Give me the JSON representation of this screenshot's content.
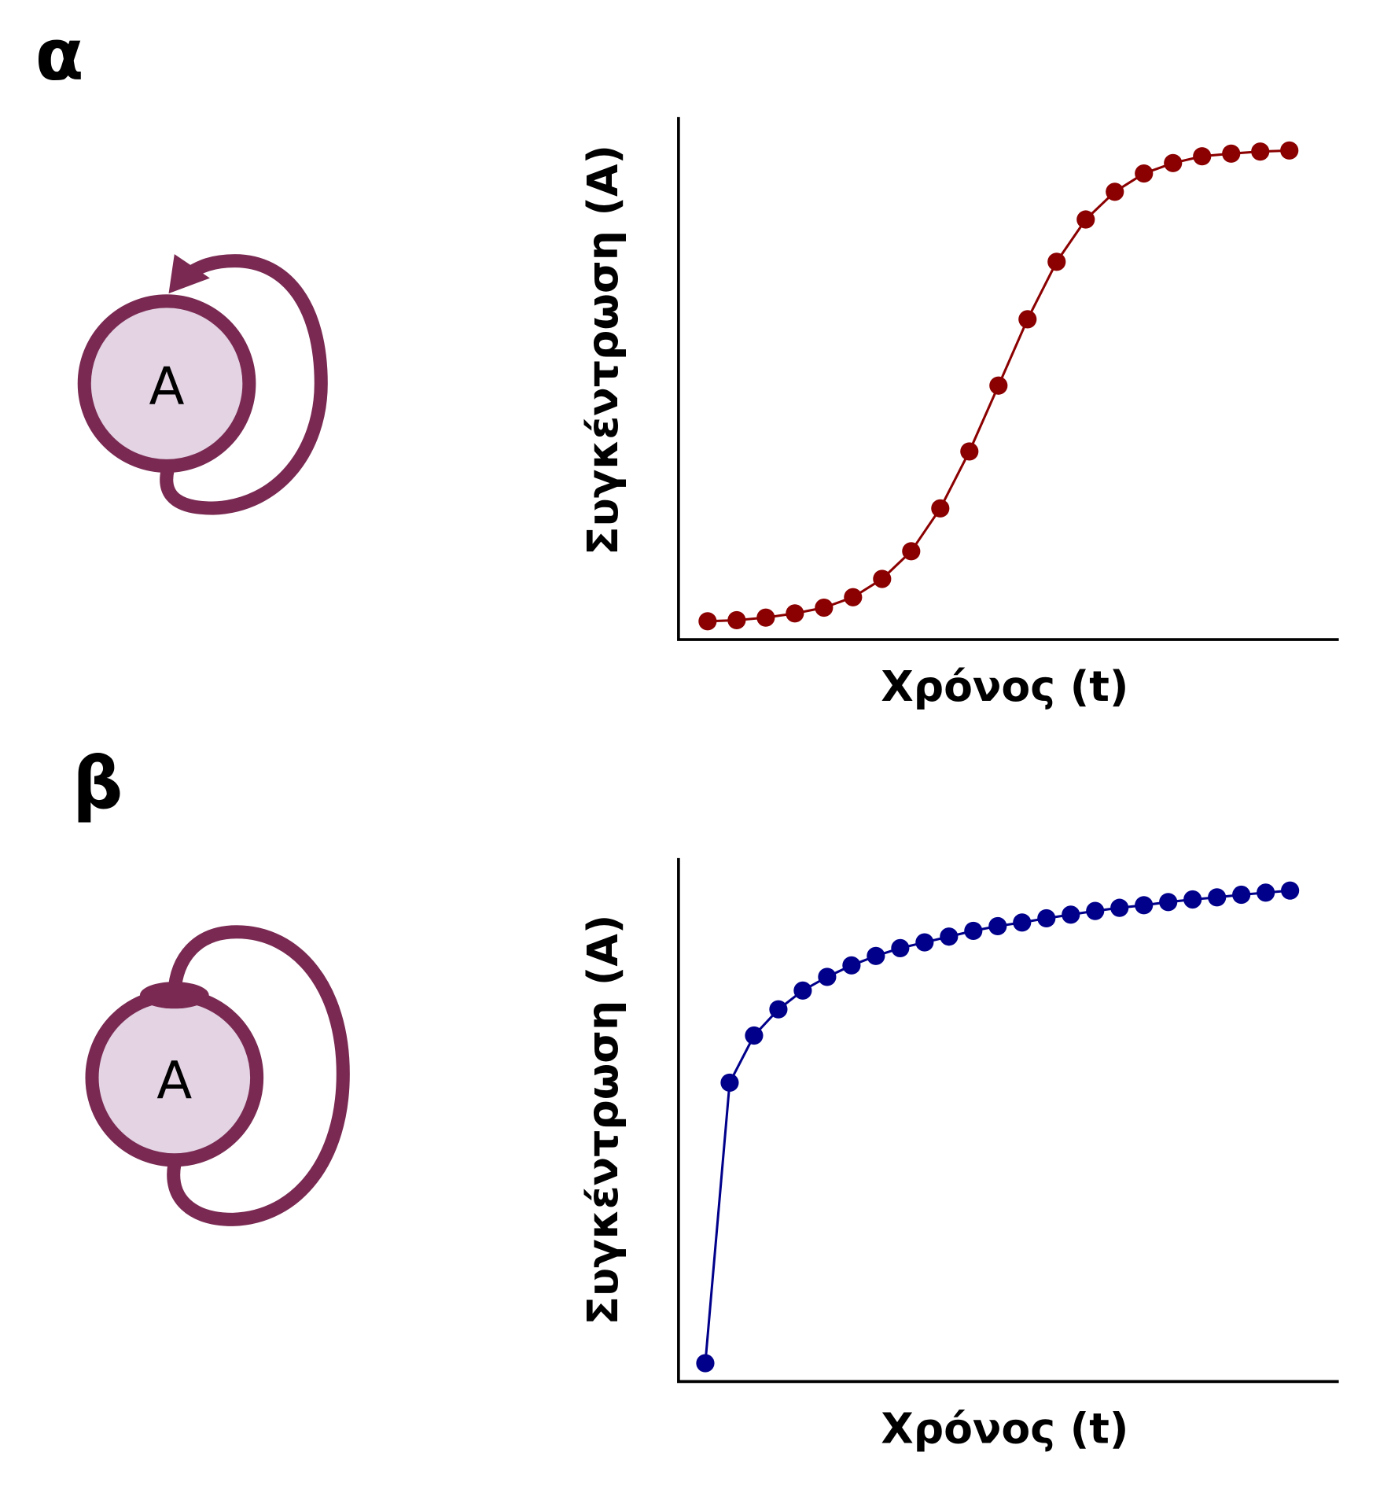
{
  "panels": [
    {
      "label": "α",
      "node": "A"
    },
    {
      "label": "β",
      "node": "A"
    }
  ],
  "chart_data": [
    {
      "type": "line",
      "xlabel": "Χρόνος (t)",
      "ylabel": "Συγκέντρωση (A)",
      "x": [
        1,
        2,
        3,
        4,
        5,
        6,
        7,
        8,
        9,
        10,
        11,
        12,
        13,
        14,
        15,
        16,
        17,
        18,
        19,
        20,
        21
      ],
      "series": [
        {
          "color": "#8b0000",
          "values": [
            3.5,
            3.7,
            4.2,
            5.0,
            6.1,
            8.1,
            11.6,
            16.9,
            25.1,
            36.0,
            48.6,
            61.3,
            72.3,
            80.4,
            85.7,
            89.2,
            91.2,
            92.5,
            93.0,
            93.4,
            93.6
          ]
        }
      ],
      "xlim": [
        0,
        22.7
      ],
      "ylim": [
        0,
        100
      ]
    },
    {
      "type": "line",
      "xlabel": "Χρόνος (t)",
      "ylabel": "Συγκέντρωση (A)",
      "x": [
        1,
        2,
        3,
        4,
        5,
        6,
        7,
        8,
        9,
        10,
        11,
        12,
        13,
        14,
        15,
        16,
        17,
        18,
        19,
        20,
        21,
        22,
        23,
        24,
        25
      ],
      "series": [
        {
          "color": "#00008b",
          "values": [
            3.5,
            57.1,
            66.1,
            71.1,
            74.7,
            77.3,
            79.5,
            81.3,
            82.8,
            83.9,
            85.0,
            86.1,
            87.0,
            87.7,
            88.5,
            89.2,
            89.9,
            90.5,
            91.0,
            91.6,
            92.1,
            92.5,
            93.0,
            93.4,
            93.8
          ]
        }
      ],
      "xlim": [
        -0.1,
        27
      ],
      "ylim": [
        0,
        100
      ]
    }
  ]
}
